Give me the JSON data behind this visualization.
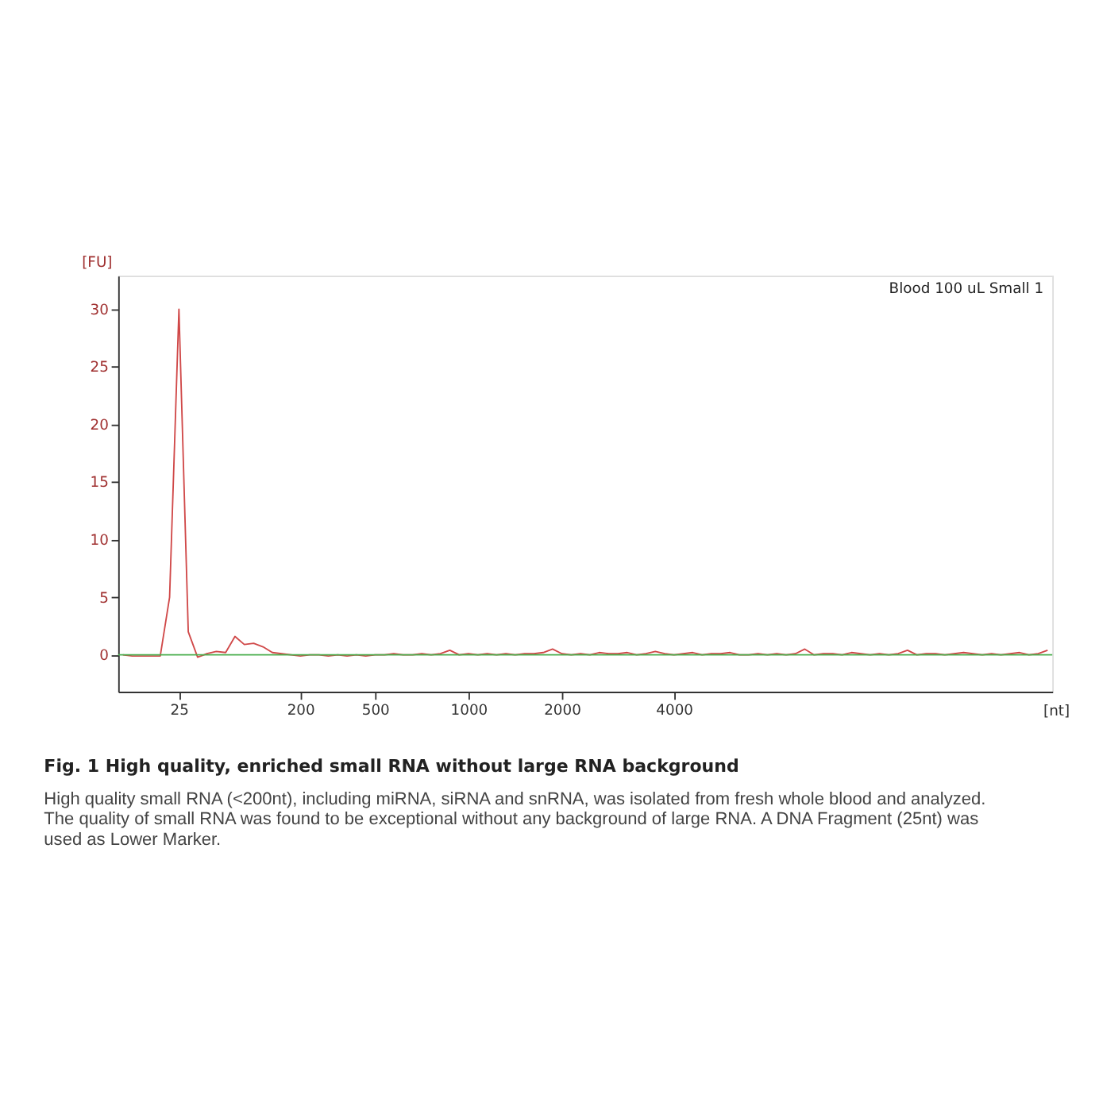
{
  "chart_data": {
    "type": "line",
    "title": "Fig. 1 High quality, enriched small RNA without large RNA background",
    "xlabel": "[nt]",
    "ylabel": "[FU]",
    "annotations": [
      "Blood 100 uL Small 1",
      "High quality small RNA (<200nt), including miRNA, siRNA and snRNA, was isolated from fresh whole blood and analyzed. The quality of small RNA was found to be exceptional without any background of large RNA. A DNA Fragment (25nt) was used as Lower Marker."
    ],
    "categories": [
      null,
      null,
      null,
      null,
      null,
      null,
      "25",
      null,
      null,
      null,
      null,
      null,
      null,
      null,
      null,
      null,
      null,
      null,
      null,
      "200",
      null,
      null,
      null,
      null,
      null,
      null,
      null,
      "500",
      null,
      null,
      null,
      null,
      null,
      null,
      null,
      null,
      null,
      "1000",
      null,
      null,
      null,
      null,
      null,
      null,
      null,
      null,
      null,
      "2000",
      null,
      null,
      null,
      null,
      null,
      null,
      null,
      null,
      null,
      null,
      null,
      "4000",
      null,
      null,
      null,
      null,
      null,
      null,
      null,
      null,
      null,
      null,
      null,
      null,
      null,
      null,
      null,
      null,
      null,
      null,
      null,
      null,
      null,
      null,
      null,
      null,
      null,
      null,
      null,
      null,
      null,
      null,
      null,
      null,
      null,
      null,
      null,
      null,
      null,
      null,
      null,
      null
    ],
    "ylim": [
      -3.2,
      32.9
    ],
    "yticks": [
      0,
      5,
      10,
      15,
      20,
      25,
      30
    ],
    "grid": false,
    "legend": false,
    "marker": "none",
    "line_style": "solid",
    "ref_lines": [
      {
        "axis": "y",
        "value": 0,
        "color": "#4caf50",
        "line_style": "solid"
      }
    ],
    "series": [
      {
        "color": "#d04848",
        "values": [
          0,
          -0.1,
          -0.1,
          -0.1,
          -0.1,
          5,
          30,
          2,
          -0.2,
          0.1,
          0.3,
          0.2,
          1.6,
          0.9,
          1.0,
          0.7,
          0.2,
          0.1,
          0,
          -0.1,
          0,
          0,
          -0.1,
          0,
          -0.1,
          0,
          -0.1,
          0,
          0,
          0.1,
          0,
          0,
          0.1,
          0,
          0.1,
          0.4,
          0,
          0.1,
          0,
          0.1,
          0,
          0.1,
          0,
          0.1,
          0.1,
          0.2,
          0.5,
          0.1,
          0,
          0.1,
          0,
          0.2,
          0.1,
          0.1,
          0.2,
          0,
          0.1,
          0.3,
          0.1,
          0,
          0.1,
          0.2,
          0,
          0.1,
          0.1,
          0.2,
          0,
          0,
          0.1,
          0,
          0.1,
          0,
          0.1,
          0.5,
          0,
          0.1,
          0.1,
          0,
          0.2,
          0.1,
          0,
          0.1,
          0,
          0.1,
          0.4,
          0,
          0.1,
          0.1,
          0,
          0.1,
          0.2,
          0.1,
          0,
          0.1,
          0,
          0.1,
          0.2,
          0,
          0.1,
          0.4
        ]
      }
    ]
  }
}
